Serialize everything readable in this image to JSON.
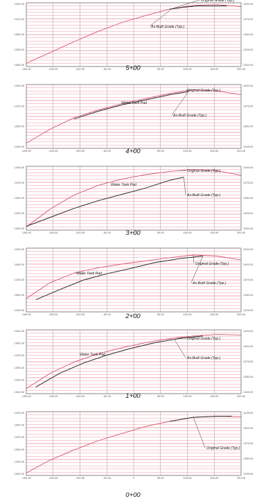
{
  "sheet_title": "",
  "colors": {
    "gridline": "#ec8a95",
    "original_grade": "#d9536b",
    "as_built": "#2a2a2a",
    "frame": "#7a7a7a"
  },
  "chart_data": [
    {
      "type": "line",
      "station_label": "5+00",
      "x_ticks": [
        "-250.00",
        "-150.00",
        "-100.00",
        "-50.00",
        "0",
        "50.00",
        "100.00",
        "150.00",
        "200.00"
      ],
      "left_ticks": [
        "1400.00",
        "1375.00",
        "1350.00",
        "1325.00",
        "1300.00"
      ],
      "right_ticks": [
        "1400.00",
        "1375.00",
        "1350.00",
        "1325.00",
        "1300.00"
      ],
      "xlim": [
        -250,
        200
      ],
      "ylim": [
        1300,
        1400
      ],
      "annotations": [
        "Original Grade (Typ.)",
        "As-Built Grade (Typ.)"
      ],
      "series": [
        {
          "role": "original",
          "x": [
            -250,
            -200,
            -150,
            -100,
            -50,
            0,
            50,
            100,
            150,
            200
          ],
          "y": [
            1305,
            1322,
            1339,
            1355,
            1369,
            1380,
            1390,
            1396,
            1397,
            1394
          ]
        },
        {
          "role": "as_built",
          "x": [
            50,
            80,
            110,
            140,
            170
          ],
          "y": [
            1390,
            1393,
            1395,
            1395,
            1395
          ]
        }
      ]
    },
    {
      "type": "line",
      "station_label": "4+00",
      "x_ticks": [
        "-250.00",
        "-150.00",
        "-100.00",
        "-50.00",
        "0",
        "50.00",
        "100.00",
        "150.00",
        "200.00"
      ],
      "left_ticks": [
        "1400.00",
        "1375.00",
        "1350.00",
        "1325.00"
      ],
      "right_ticks": [
        "1400.00",
        "1375.00",
        "1350.00",
        "1325.00"
      ],
      "xlim": [
        -250,
        200
      ],
      "ylim": [
        1300,
        1400
      ],
      "annotations": [
        "Original Grade (Typ.)",
        "Water Tank Pad",
        "As-Built Grade (Typ.)"
      ],
      "series": [
        {
          "role": "original",
          "x": [
            -250,
            -200,
            -150,
            -100,
            -50,
            0,
            50,
            100,
            150,
            200
          ],
          "y": [
            1308,
            1330,
            1348,
            1360,
            1370,
            1378,
            1386,
            1392,
            1390,
            1384
          ]
        },
        {
          "role": "as_built",
          "x": [
            -150,
            -100,
            -50,
            0,
            50,
            90
          ],
          "y": [
            1346,
            1358,
            1368,
            1376,
            1384,
            1389
          ]
        }
      ]
    },
    {
      "type": "line",
      "station_label": "3+00",
      "x_ticks": [
        "-250.00",
        "-150.00",
        "-100.00",
        "-50.00",
        "0",
        "50.00",
        "100.00",
        "150.00",
        "200.00"
      ],
      "left_ticks": [
        "1400.00",
        "1375.00",
        "1350.00",
        "1325.00",
        "1300.00"
      ],
      "right_ticks": [
        "1400.00",
        "1375.00",
        "1350.00",
        "1325.00",
        "1300.00"
      ],
      "xlim": [
        -250,
        200
      ],
      "ylim": [
        1300,
        1400
      ],
      "annotations": [
        "Original Grade (Typ.)",
        "Water Tank Pad",
        "As-Built Grade (Typ.)"
      ],
      "series": [
        {
          "role": "original",
          "x": [
            -250,
            -200,
            -150,
            -100,
            -50,
            0,
            50,
            100,
            150,
            200
          ],
          "y": [
            1305,
            1333,
            1355,
            1370,
            1380,
            1387,
            1392,
            1395,
            1393,
            1386
          ]
        },
        {
          "role": "as_built",
          "x": [
            -250,
            -200,
            -150,
            -100,
            -50,
            0,
            50,
            80
          ],
          "y": [
            1306,
            1320,
            1334,
            1346,
            1356,
            1366,
            1378,
            1383
          ]
        }
      ]
    },
    {
      "type": "line",
      "station_label": "2+00",
      "x_ticks": [
        "-250.00",
        "-150.00",
        "-100.00",
        "-50.00",
        "0",
        "50.00",
        "100.00",
        "150.00",
        "200.00"
      ],
      "left_ticks": [
        "1400.00",
        "1400.00",
        "1375.00",
        "1350.00",
        "1325.00"
      ],
      "right_ticks": [
        "1400.00",
        "1400.00",
        "1375.00",
        "1350.00",
        "1325.00"
      ],
      "xlim": [
        -250,
        200
      ],
      "ylim": [
        1300,
        1420
      ],
      "annotations": [
        "Original Grade (Typ.)",
        "Water Tank Pad",
        "As-Built Grade (Typ.)"
      ],
      "series": [
        {
          "role": "original",
          "x": [
            -250,
            -200,
            -150,
            -100,
            -50,
            0,
            50,
            100,
            150,
            200
          ],
          "y": [
            1325,
            1355,
            1373,
            1383,
            1390,
            1396,
            1402,
            1407,
            1405,
            1398
          ]
        },
        {
          "role": "as_built",
          "x": [
            -230,
            -180,
            -130,
            -80,
            -30,
            20,
            70,
            120
          ],
          "y": [
            1323,
            1342,
            1360,
            1372,
            1382,
            1393,
            1400,
            1405
          ]
        }
      ]
    },
    {
      "type": "line",
      "station_label": "1+00",
      "x_ticks": [
        "-250.00",
        "-150.00",
        "-100.00",
        "-50.00",
        "0",
        "50.00",
        "100.00",
        "150.00",
        "200.00"
      ],
      "left_ticks": [
        "1400.00",
        "1400.00",
        "1375.00",
        "1350.00",
        "1325.00",
        "1300.00"
      ],
      "right_ticks": [
        "1400.00",
        "1400.00",
        "1375.00",
        "1350.00",
        "1325.00"
      ],
      "xlim": [
        -250,
        200
      ],
      "ylim": [
        1300,
        1425
      ],
      "annotations": [
        "Original Grade (Typ.)",
        "Water Tank Pad",
        "As-Built Grade (Typ.)"
      ],
      "series": [
        {
          "role": "original",
          "x": [
            -250,
            -200,
            -150,
            -100,
            -50,
            0,
            50,
            100,
            150,
            200
          ],
          "y": [
            1310,
            1340,
            1362,
            1378,
            1390,
            1400,
            1408,
            1413,
            1416,
            1415
          ]
        },
        {
          "role": "as_built",
          "x": [
            -230,
            -180,
            -130,
            -80,
            -30,
            20,
            70,
            120
          ],
          "y": [
            1313,
            1340,
            1360,
            1376,
            1389,
            1400,
            1408,
            1413
          ]
        }
      ]
    },
    {
      "type": "line",
      "station_label": "0+00",
      "x_ticks": [
        "-250.00",
        "-150.00",
        "-100.00",
        "-50.00",
        "0",
        "50.00",
        "100.00",
        "150.00",
        "200.00"
      ],
      "left_ticks": [
        "1425.00",
        "1400.00",
        "1375.00",
        "1350.00",
        "1325.00",
        "1300.00"
      ],
      "right_ticks": [
        "1425.00",
        "1400.00",
        "1375.00",
        "1350.00",
        "1325.00"
      ],
      "xlim": [
        -250,
        200
      ],
      "ylim": [
        1300,
        1425
      ],
      "annotations": [
        "Original Grade (Typ.)"
      ],
      "series": [
        {
          "role": "original",
          "x": [
            -250,
            -200,
            -150,
            -100,
            -50,
            0,
            50,
            100,
            150,
            200
          ],
          "y": [
            1305,
            1330,
            1350,
            1368,
            1382,
            1396,
            1406,
            1414,
            1416,
            1415
          ]
        },
        {
          "role": "as_built",
          "x": [
            50,
            100,
            150,
            180
          ],
          "y": [
            1406,
            1414,
            1416,
            1416
          ]
        }
      ]
    }
  ]
}
